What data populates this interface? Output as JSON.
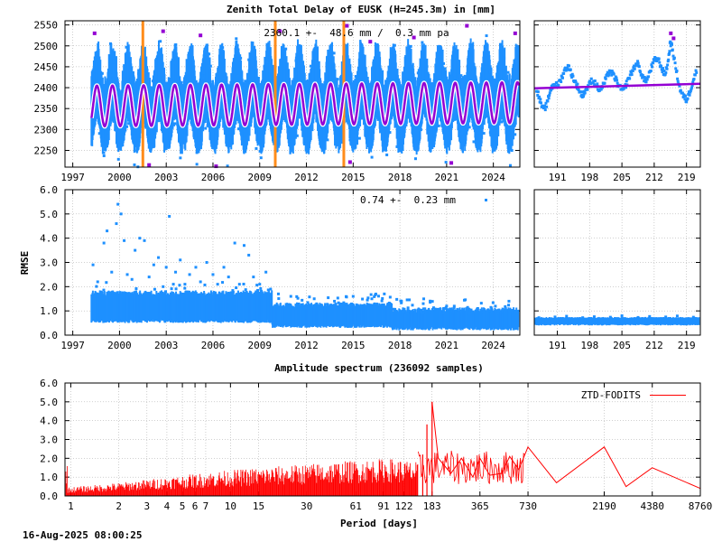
{
  "figure": {
    "title": "Zenith Total Delay of EUSK (H=245.3m) in [mm]",
    "timestamp": "16-Aug-2025 08:00:25"
  },
  "colors": {
    "observations": "#1e90ff",
    "model": "#9400d3",
    "outliers": "#9400d3",
    "breaks": "#ff8c1a",
    "spectrum": "#ff0000"
  },
  "chart_data": [
    {
      "id": "ztd",
      "type": "scatter",
      "annotation": "2360.1 +-  48.6 mm /  0.3 mm pa",
      "xlim": [
        1996.5,
        2025.7
      ],
      "ylim": [
        2210,
        2560
      ],
      "xticks": [
        1997,
        2000,
        2003,
        2006,
        2009,
        2012,
        2015,
        2018,
        2021,
        2024
      ],
      "xtick_labels": [
        "1997",
        "2000",
        "2003",
        "2006",
        "2009",
        "2012",
        "2015",
        "2018",
        "2021",
        "2024"
      ],
      "yticks": [
        2250,
        2300,
        2350,
        2400,
        2450,
        2500,
        2550
      ],
      "ytick_labels": [
        "2250",
        "2300",
        "2350",
        "2400",
        "2450",
        "2500",
        "2550"
      ],
      "data_start": 1998.2,
      "model": {
        "mean": 2360.1,
        "trend_per_year": 0.3,
        "annual_amplitude": 48.6,
        "ref_year": 2011.5
      },
      "observation_band": {
        "lower": 2270,
        "upper": 2500
      },
      "breaks": [
        2001.5,
        2010.0,
        2014.4
      ],
      "outliers": [
        [
          1998.4,
          2530
        ],
        [
          2002.8,
          2535
        ],
        [
          2005.2,
          2525
        ],
        [
          2010.3,
          2535
        ],
        [
          2014.6,
          2548
        ],
        [
          2016.1,
          2510
        ],
        [
          2018.9,
          2520
        ],
        [
          2022.3,
          2548
        ],
        [
          2025.4,
          2530
        ],
        [
          2001.9,
          2215
        ],
        [
          2006.2,
          2212
        ],
        [
          2014.8,
          2222
        ],
        [
          2021.3,
          2220
        ]
      ]
    },
    {
      "id": "ztd-recent",
      "type": "scatter",
      "xlim": [
        186,
        222
      ],
      "ylim": [
        2210,
        2560
      ],
      "xticks": [
        191,
        198,
        205,
        212,
        219
      ],
      "xtick_labels": [
        "191",
        "198",
        "205",
        "212",
        "219"
      ],
      "yticks": [
        2250,
        2300,
        2350,
        2400,
        2450,
        2500,
        2550
      ],
      "model_level": 2405,
      "points": [
        [
          186.5,
          2398
        ],
        [
          187.2,
          2370
        ],
        [
          188.0,
          2345
        ],
        [
          188.8,
          2362
        ],
        [
          189.5,
          2395
        ],
        [
          190.3,
          2410
        ],
        [
          191.0,
          2405
        ],
        [
          191.8,
          2420
        ],
        [
          192.5,
          2440
        ],
        [
          193.3,
          2452
        ],
        [
          194.0,
          2435
        ],
        [
          194.8,
          2415
        ],
        [
          195.5,
          2400
        ],
        [
          196.3,
          2380
        ],
        [
          197.0,
          2392
        ],
        [
          197.8,
          2405
        ],
        [
          198.5,
          2418
        ],
        [
          199.3,
          2410
        ],
        [
          200.0,
          2395
        ],
        [
          200.8,
          2402
        ],
        [
          201.5,
          2420
        ],
        [
          202.3,
          2440
        ],
        [
          203.0,
          2432
        ],
        [
          203.8,
          2418
        ],
        [
          204.5,
          2400
        ],
        [
          205.3,
          2392
        ],
        [
          206.0,
          2410
        ],
        [
          206.8,
          2430
        ],
        [
          207.5,
          2445
        ],
        [
          208.3,
          2460
        ],
        [
          209.0,
          2440
        ],
        [
          209.8,
          2418
        ],
        [
          210.5,
          2420
        ],
        [
          211.3,
          2445
        ],
        [
          212.0,
          2465
        ],
        [
          212.8,
          2470
        ],
        [
          213.5,
          2450
        ],
        [
          214.3,
          2430
        ],
        [
          215.0,
          2460
        ],
        [
          215.5,
          2510
        ],
        [
          216.0,
          2490
        ],
        [
          216.8,
          2440
        ],
        [
          217.5,
          2400
        ],
        [
          218.3,
          2380
        ],
        [
          219.0,
          2370
        ],
        [
          219.8,
          2392
        ],
        [
          220.5,
          2420
        ],
        [
          221.3,
          2445
        ]
      ],
      "outliers": [
        [
          215.6,
          2530
        ],
        [
          216.2,
          2518
        ]
      ]
    },
    {
      "id": "rmse",
      "type": "scatter",
      "ylabel": "RMSE",
      "annotation": "0.74 +-  0.23 mm",
      "xlim": [
        1996.5,
        2025.7
      ],
      "ylim": [
        0,
        6
      ],
      "xticks": [
        1997,
        2000,
        2003,
        2006,
        2009,
        2012,
        2015,
        2018,
        2021,
        2024
      ],
      "xtick_labels": [
        "1997",
        "2000",
        "2003",
        "2006",
        "2009",
        "2012",
        "2015",
        "2018",
        "2021",
        "2024"
      ],
      "yticks": [
        0,
        1,
        2,
        3,
        4,
        5,
        6
      ],
      "ytick_labels": [
        "0.0",
        "1.0",
        "2.0",
        "3.0",
        "4.0",
        "5.0",
        "6.0"
      ],
      "band_segments": [
        {
          "x0": 1998.2,
          "x1": 2009.8,
          "lower": 0.65,
          "upper": 1.6
        },
        {
          "x0": 2009.8,
          "x1": 2017.5,
          "lower": 0.45,
          "upper": 1.1
        },
        {
          "x0": 2017.5,
          "x1": 2025.6,
          "lower": 0.35,
          "upper": 0.9
        }
      ],
      "points": [
        [
          1998.3,
          2.9
        ],
        [
          1998.6,
          2.2
        ],
        [
          1999.0,
          3.8
        ],
        [
          1999.2,
          4.3
        ],
        [
          1999.5,
          2.6
        ],
        [
          1999.8,
          4.6
        ],
        [
          1999.9,
          5.4
        ],
        [
          2000.1,
          5.0
        ],
        [
          2000.3,
          3.9
        ],
        [
          2000.5,
          2.5
        ],
        [
          2000.8,
          2.3
        ],
        [
          2001.0,
          3.5
        ],
        [
          2001.3,
          4.0
        ],
        [
          2001.6,
          3.9
        ],
        [
          2001.9,
          2.4
        ],
        [
          2002.2,
          2.9
        ],
        [
          2002.5,
          3.2
        ],
        [
          2002.8,
          2.0
        ],
        [
          2003.0,
          2.8
        ],
        [
          2003.2,
          4.9
        ],
        [
          2003.6,
          2.6
        ],
        [
          2003.9,
          3.1
        ],
        [
          2004.2,
          2.1
        ],
        [
          2004.5,
          2.5
        ],
        [
          2004.9,
          2.8
        ],
        [
          2005.2,
          2.2
        ],
        [
          2005.6,
          3.0
        ],
        [
          2006.0,
          2.5
        ],
        [
          2006.3,
          2.1
        ],
        [
          2006.7,
          2.8
        ],
        [
          2007.0,
          2.4
        ],
        [
          2007.4,
          3.8
        ],
        [
          2007.7,
          2.1
        ],
        [
          2008.0,
          3.7
        ],
        [
          2008.3,
          3.3
        ],
        [
          2008.6,
          2.4
        ],
        [
          2009.0,
          2.1
        ],
        [
          2009.4,
          2.6
        ],
        [
          2009.7,
          1.9
        ],
        [
          2010.2,
          1.7
        ],
        [
          2011.0,
          1.6
        ],
        [
          2012.5,
          1.5
        ],
        [
          2013.8,
          1.4
        ],
        [
          2015.0,
          1.6
        ],
        [
          2016.2,
          1.5
        ],
        [
          2017.0,
          1.7
        ],
        [
          2018.1,
          1.4
        ],
        [
          2019.5,
          1.3
        ],
        [
          2021.0,
          1.2
        ],
        [
          2023.0,
          1.1
        ],
        [
          2025.0,
          1.4
        ]
      ]
    },
    {
      "id": "rmse-recent",
      "type": "scatter",
      "xlim": [
        186,
        222
      ],
      "ylim": [
        0,
        6
      ],
      "xticks": [
        191,
        198,
        205,
        212,
        219
      ],
      "xtick_labels": [
        "191",
        "198",
        "205",
        "212",
        "219"
      ],
      "yticks": [
        0,
        1,
        2,
        3,
        4,
        5,
        6
      ],
      "band": {
        "lower": 0.45,
        "upper": 0.7
      },
      "points": [
        [
          187.0,
          0.72
        ],
        [
          190.5,
          0.75
        ],
        [
          193.0,
          0.78
        ],
        [
          196.5,
          0.72
        ],
        [
          199.0,
          0.76
        ],
        [
          202.5,
          0.74
        ],
        [
          205.0,
          0.8
        ],
        [
          208.5,
          0.73
        ],
        [
          211.0,
          0.77
        ],
        [
          214.5,
          0.75
        ],
        [
          217.0,
          0.79
        ],
        [
          220.5,
          0.74
        ]
      ]
    },
    {
      "id": "spectrum",
      "type": "line",
      "title": "Amplitude spectrum (236092 samples)",
      "xlabel": "Period [days]",
      "legend": "ZTD-FODITS",
      "legend_position": "top-right",
      "xscale": "log",
      "xlim": [
        0.92,
        8760
      ],
      "ylim": [
        0,
        6
      ],
      "xticks": [
        1,
        2,
        3,
        4,
        5,
        6,
        7,
        10,
        15,
        30,
        61,
        91,
        122,
        183,
        365,
        730,
        2190,
        4380,
        8760
      ],
      "xtick_labels": [
        "1",
        "2",
        "3",
        "4",
        "5",
        "6",
        "7",
        "10",
        "15",
        "30",
        "61",
        "91",
        "122",
        "183",
        "365",
        "730",
        "2190",
        "4380",
        "8760"
      ],
      "yticks": [
        0,
        1,
        2,
        3,
        4,
        5,
        6
      ],
      "ytick_labels": [
        "0.0",
        "1.0",
        "2.0",
        "3.0",
        "4.0",
        "5.0",
        "6.0"
      ],
      "envelope": [
        [
          0.95,
          0.45
        ],
        [
          2,
          0.7
        ],
        [
          4,
          1.0
        ],
        [
          8,
          1.3
        ],
        [
          15,
          1.5
        ],
        [
          30,
          1.7
        ],
        [
          61,
          1.9
        ],
        [
          100,
          2.0
        ],
        [
          150,
          1.8
        ]
      ],
      "peaks": [
        [
          183,
          5.0
        ],
        [
          170,
          3.8
        ],
        [
          160,
          2.2
        ]
      ],
      "tail": [
        [
          200,
          2.0
        ],
        [
          240,
          1.2
        ],
        [
          280,
          2.0
        ],
        [
          330,
          1.0
        ],
        [
          365,
          2.0
        ],
        [
          420,
          1.1
        ],
        [
          500,
          1.2
        ],
        [
          560,
          2.1
        ],
        [
          640,
          1.4
        ],
        [
          730,
          2.6
        ],
        [
          1100,
          0.7
        ],
        [
          2190,
          2.6
        ],
        [
          3000,
          0.5
        ],
        [
          4380,
          1.5
        ],
        [
          8760,
          0.4
        ]
      ]
    }
  ]
}
